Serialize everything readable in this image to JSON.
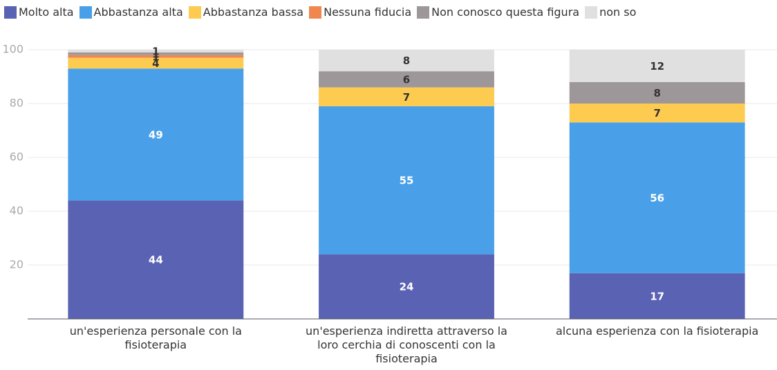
{
  "chart_data": {
    "type": "stacked_bar",
    "categories": [
      "un'esperienza personale con la fisioterapia",
      "un'esperienza indiretta attraverso la loro cerchia di conoscenti con la fisioterapia",
      "alcuna esperienza con la fisioterapia"
    ],
    "series": [
      {
        "name": "Molto alta",
        "color": "#5a62b3",
        "values": [
          44,
          24,
          17
        ]
      },
      {
        "name": "Abbastanza alta",
        "color": "#4aa0e8",
        "values": [
          49,
          55,
          56
        ]
      },
      {
        "name": "Abbastanza bassa",
        "color": "#fdcb50",
        "values": [
          4,
          7,
          7
        ]
      },
      {
        "name": "Nessuna fiducia",
        "color": "#f0874e",
        "values": [
          1,
          0,
          0
        ]
      },
      {
        "name": "Non conosco questa figura",
        "color": "#9e9799",
        "values": [
          1,
          6,
          8
        ]
      },
      {
        "name": "non so",
        "color": "#e0e0e0",
        "values": [
          1,
          8,
          12
        ]
      }
    ],
    "ylim": [
      0,
      100
    ],
    "yticks": [
      20,
      40,
      60,
      80,
      100
    ],
    "grid": true
  }
}
